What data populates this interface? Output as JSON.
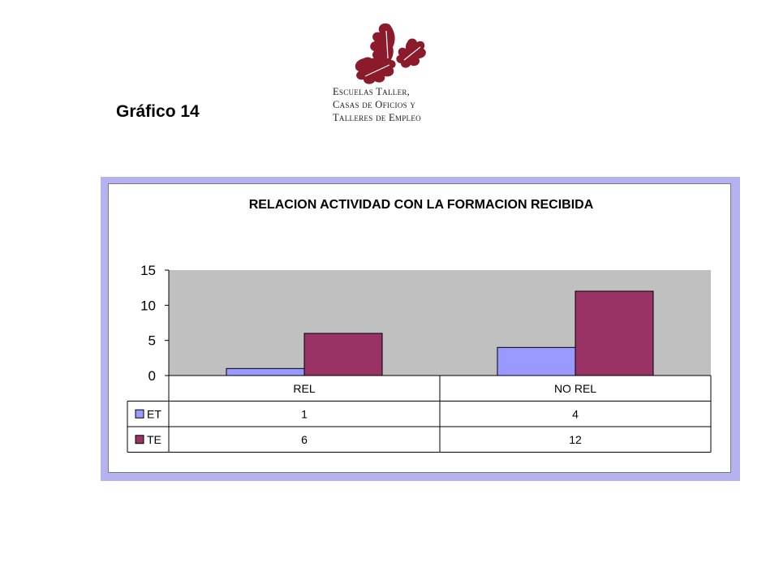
{
  "page": {
    "title": "Gráfico 14"
  },
  "logo": {
    "lines": [
      "Escuelas Taller,",
      "Casas de Oficios y",
      "Talleres de Empleo"
    ],
    "color": "#8b1a2b"
  },
  "chart_data": {
    "type": "bar",
    "title": "RELACION ACTIVIDAD CON LA FORMACION RECIBIDA",
    "categories": [
      "REL",
      "NO REL"
    ],
    "series": [
      {
        "name": "ET",
        "values": [
          1,
          4
        ],
        "color": "#9999ff"
      },
      {
        "name": "TE",
        "values": [
          6,
          12
        ],
        "color": "#993366"
      }
    ],
    "ylim": [
      0,
      15
    ],
    "yticks": [
      0,
      5,
      10,
      15
    ],
    "ytick_labels": [
      "0",
      "5",
      "10",
      "15"
    ],
    "plot_background": "#c0c0c0",
    "frame_color": "#b3b3f0",
    "data_table": true,
    "legend": "in data table"
  }
}
